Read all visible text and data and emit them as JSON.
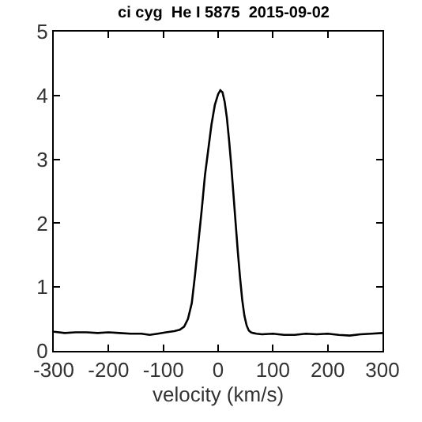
{
  "chart_data": {
    "type": "line",
    "title": "ci cyg  He I 5875  2015-09-02",
    "xlabel": "velocity (km/s)",
    "x": [
      -300,
      -280,
      -260,
      -240,
      -220,
      -200,
      -180,
      -160,
      -140,
      -125,
      -110,
      -95,
      -80,
      -70,
      -62,
      -55,
      -48,
      -42,
      -36,
      -30,
      -24,
      -18,
      -12,
      -6,
      0,
      4,
      8,
      12,
      16,
      20,
      24,
      28,
      32,
      36,
      40,
      44,
      48,
      52,
      56,
      60,
      64,
      70,
      80,
      100,
      120,
      140,
      160,
      180,
      200,
      220,
      240,
      260,
      280,
      300
    ],
    "series": [
      {
        "color": "#000000",
        "values": [
          0.3,
          0.28,
          0.29,
          0.29,
          0.28,
          0.29,
          0.28,
          0.27,
          0.27,
          0.25,
          0.27,
          0.29,
          0.31,
          0.33,
          0.38,
          0.5,
          0.75,
          1.2,
          1.7,
          2.2,
          2.75,
          3.15,
          3.55,
          3.85,
          4.02,
          4.08,
          4.05,
          3.9,
          3.65,
          3.3,
          2.9,
          2.45,
          2.0,
          1.55,
          1.15,
          0.8,
          0.55,
          0.4,
          0.32,
          0.29,
          0.28,
          0.27,
          0.26,
          0.27,
          0.25,
          0.25,
          0.27,
          0.26,
          0.27,
          0.25,
          0.24,
          0.26,
          0.27,
          0.28
        ]
      }
    ],
    "xlim": [
      -300,
      300
    ],
    "xticks": [
      -300,
      -200,
      -100,
      0,
      100,
      200,
      300
    ],
    "ylim": [
      0,
      5
    ],
    "yticks": [
      0,
      1,
      2,
      3,
      4,
      5
    ],
    "marker": "none",
    "line_style": "solid"
  }
}
